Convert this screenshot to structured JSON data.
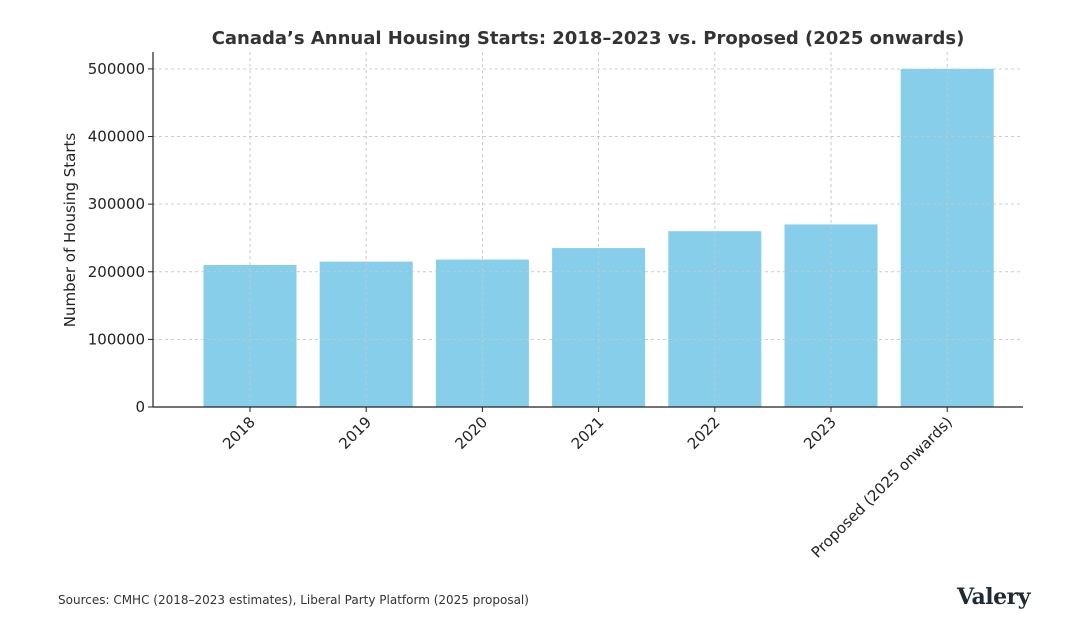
{
  "chart_data": {
    "type": "bar",
    "title": "Canada’s Annual Housing Starts: 2018–2023 vs. Proposed (2025 onwards)",
    "xlabel": "",
    "ylabel": "Number of Housing Starts",
    "categories": [
      "2018",
      "2019",
      "2020",
      "2021",
      "2022",
      "2023",
      "Proposed (2025 onwards)"
    ],
    "values": [
      210000,
      215000,
      218000,
      235000,
      260000,
      270000,
      500000
    ],
    "ylim": [
      0,
      525000
    ],
    "yticks": [
      0,
      100000,
      200000,
      300000,
      400000,
      500000
    ],
    "ytick_labels": [
      "0",
      "100000",
      "200000",
      "300000",
      "400000",
      "500000"
    ],
    "grid": true,
    "bar_color": "#87CEEB"
  },
  "footer": {
    "source": "Sources: CMHC (2018–2023 estimates), Liberal Party Platform (2025 proposal)",
    "brand": "Valery"
  }
}
